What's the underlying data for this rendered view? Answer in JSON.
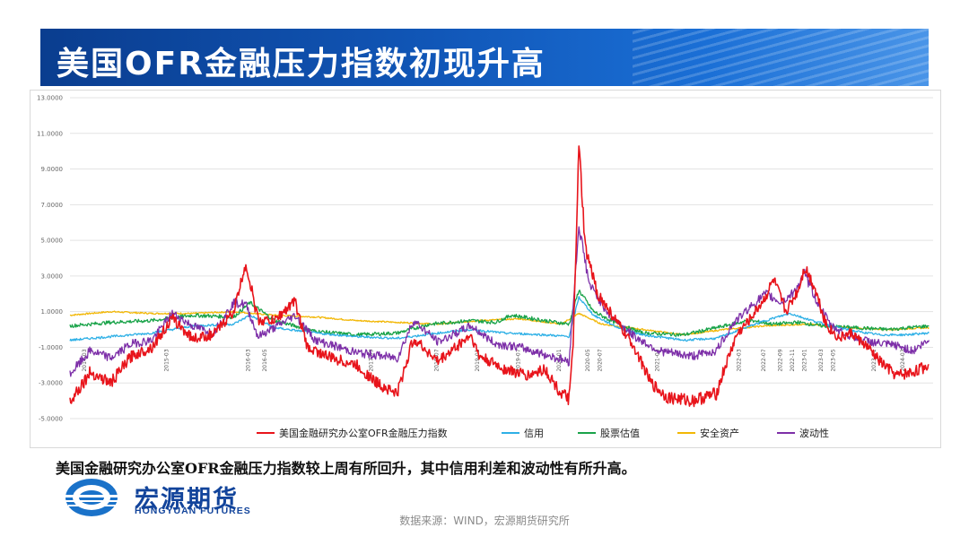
{
  "banner": {
    "title": "美国OFR金融压力指数初现升高"
  },
  "summary": "美国金融研究办公室OFR金融压力指数较上周有所回升，其中信用利差和波动性有所升高。",
  "logo": {
    "cn": "宏源期货",
    "en": "HONGYUAN FUTURES"
  },
  "source": "数据来源：WIND，宏源期货研究所",
  "colors": {
    "banner": "#1157b8",
    "brand": "#12449b"
  },
  "chart_data": {
    "type": "line",
    "ylim": [
      -5,
      13
    ],
    "ytick_labels": [
      "13.0000",
      "11.0000",
      "9.0000",
      "7.0000",
      "5.0000",
      "3.0000",
      "1.0000",
      "-1.0000",
      "-3.0000",
      "-5.0000"
    ],
    "ytick_values": [
      13,
      11,
      9,
      7,
      5,
      3,
      1,
      -1,
      -3,
      -5
    ],
    "x_range": [
      "2014-03",
      "2024-03"
    ],
    "x_tick_labels": [
      "2014-03",
      "2015-03",
      "2016-03",
      "2016-05",
      "2017-09",
      "2018-07",
      "2019-01",
      "2019-07",
      "2020-01",
      "2020-05",
      "2020-07",
      "2021-03",
      "2022-03",
      "2022-07",
      "2022-09",
      "2022-11",
      "2023-01",
      "2023-03",
      "2023-05",
      "2023-11",
      "2024-03"
    ],
    "x_tick_years": [
      2014.2,
      2015.2,
      2016.2,
      2016.4,
      2017.7,
      2018.5,
      2019.0,
      2019.5,
      2020.0,
      2020.35,
      2020.5,
      2021.2,
      2022.2,
      2022.5,
      2022.7,
      2022.85,
      2023.0,
      2023.2,
      2023.35,
      2023.85,
      2024.2
    ],
    "series": [
      {
        "name": "美国金融研究办公室OFR金融压力指数",
        "color": "#e8141b",
        "points": [
          [
            2014.0,
            -4.0
          ],
          [
            2014.25,
            -2.4
          ],
          [
            2014.5,
            -3.0
          ],
          [
            2014.75,
            -1.5
          ],
          [
            2015.0,
            -1.0
          ],
          [
            2015.25,
            0.6
          ],
          [
            2015.5,
            -0.5
          ],
          [
            2015.75,
            -0.3
          ],
          [
            2016.0,
            1.0
          ],
          [
            2016.15,
            3.7
          ],
          [
            2016.3,
            0.5
          ],
          [
            2016.5,
            0.5
          ],
          [
            2016.75,
            1.6
          ],
          [
            2016.9,
            -1.0
          ],
          [
            2017.2,
            -1.6
          ],
          [
            2017.5,
            -2.0
          ],
          [
            2017.75,
            -3.0
          ],
          [
            2018.0,
            -3.6
          ],
          [
            2018.2,
            -0.5
          ],
          [
            2018.5,
            -1.8
          ],
          [
            2018.9,
            -0.3
          ],
          [
            2019.0,
            -1.5
          ],
          [
            2019.3,
            -2.2
          ],
          [
            2019.6,
            -2.6
          ],
          [
            2019.8,
            -2.2
          ],
          [
            2020.0,
            -3.6
          ],
          [
            2020.1,
            -3.9
          ],
          [
            2020.15,
            -1.0
          ],
          [
            2020.22,
            10.3
          ],
          [
            2020.3,
            4.5
          ],
          [
            2020.45,
            2.0
          ],
          [
            2020.7,
            0.3
          ],
          [
            2020.9,
            -1.0
          ],
          [
            2021.1,
            -3.0
          ],
          [
            2021.3,
            -3.8
          ],
          [
            2021.6,
            -4.0
          ],
          [
            2021.9,
            -3.6
          ],
          [
            2022.0,
            -2.2
          ],
          [
            2022.15,
            -0.3
          ],
          [
            2022.3,
            0.5
          ],
          [
            2022.5,
            1.8
          ],
          [
            2022.6,
            2.8
          ],
          [
            2022.75,
            1.0
          ],
          [
            2022.9,
            2.2
          ],
          [
            2022.98,
            3.5
          ],
          [
            2023.1,
            2.4
          ],
          [
            2023.25,
            0.2
          ],
          [
            2023.4,
            -0.5
          ],
          [
            2023.55,
            -0.2
          ],
          [
            2023.75,
            -1.0
          ],
          [
            2023.9,
            -1.8
          ],
          [
            2024.1,
            -2.6
          ],
          [
            2024.3,
            -2.4
          ],
          [
            2024.5,
            -2.0
          ]
        ]
      },
      {
        "name": "信用",
        "color": "#2eb0e6",
        "points": [
          [
            2014.0,
            -0.6
          ],
          [
            2014.5,
            -0.4
          ],
          [
            2015.0,
            -0.2
          ],
          [
            2015.5,
            0.2
          ],
          [
            2016.0,
            0.3
          ],
          [
            2016.2,
            0.8
          ],
          [
            2016.5,
            0.1
          ],
          [
            2017.0,
            -0.2
          ],
          [
            2017.5,
            -0.4
          ],
          [
            2018.0,
            -0.5
          ],
          [
            2018.5,
            -0.2
          ],
          [
            2018.9,
            0.0
          ],
          [
            2019.3,
            -0.2
          ],
          [
            2019.8,
            -0.3
          ],
          [
            2020.1,
            -0.4
          ],
          [
            2020.22,
            1.8
          ],
          [
            2020.4,
            0.8
          ],
          [
            2020.7,
            0.1
          ],
          [
            2021.0,
            -0.3
          ],
          [
            2021.5,
            -0.6
          ],
          [
            2021.9,
            -0.5
          ],
          [
            2022.2,
            0.0
          ],
          [
            2022.5,
            0.5
          ],
          [
            2022.8,
            0.9
          ],
          [
            2023.0,
            0.6
          ],
          [
            2023.3,
            0.2
          ],
          [
            2023.6,
            -0.1
          ],
          [
            2023.9,
            -0.3
          ],
          [
            2024.2,
            -0.3
          ],
          [
            2024.5,
            -0.2
          ]
        ]
      },
      {
        "name": "股票估值",
        "color": "#19a349",
        "points": [
          [
            2014.0,
            0.2
          ],
          [
            2014.5,
            0.4
          ],
          [
            2015.0,
            0.5
          ],
          [
            2015.5,
            0.8
          ],
          [
            2016.0,
            0.7
          ],
          [
            2016.2,
            1.5
          ],
          [
            2016.5,
            0.5
          ],
          [
            2017.0,
            -0.1
          ],
          [
            2017.5,
            -0.3
          ],
          [
            2018.0,
            -0.2
          ],
          [
            2018.4,
            0.3
          ],
          [
            2018.9,
            0.5
          ],
          [
            2019.2,
            0.4
          ],
          [
            2019.4,
            0.8
          ],
          [
            2019.8,
            0.5
          ],
          [
            2020.1,
            0.3
          ],
          [
            2020.22,
            2.2
          ],
          [
            2020.4,
            1.0
          ],
          [
            2020.7,
            0.3
          ],
          [
            2021.0,
            -0.2
          ],
          [
            2021.5,
            -0.3
          ],
          [
            2021.9,
            0.1
          ],
          [
            2022.3,
            0.5
          ],
          [
            2022.6,
            0.3
          ],
          [
            2022.9,
            0.4
          ],
          [
            2023.2,
            0.2
          ],
          [
            2023.6,
            0.1
          ],
          [
            2024.0,
            0.0
          ],
          [
            2024.5,
            0.2
          ]
        ]
      },
      {
        "name": "安全资产",
        "color": "#f2b705",
        "points": [
          [
            2014.0,
            0.8
          ],
          [
            2014.5,
            1.0
          ],
          [
            2015.0,
            0.9
          ],
          [
            2015.5,
            0.9
          ],
          [
            2016.0,
            1.0
          ],
          [
            2016.5,
            0.8
          ],
          [
            2017.0,
            0.7
          ],
          [
            2017.5,
            0.5
          ],
          [
            2018.0,
            0.4
          ],
          [
            2018.5,
            0.3
          ],
          [
            2019.0,
            0.5
          ],
          [
            2019.5,
            0.6
          ],
          [
            2020.0,
            0.3
          ],
          [
            2020.22,
            0.9
          ],
          [
            2020.5,
            0.3
          ],
          [
            2021.0,
            0.0
          ],
          [
            2021.5,
            -0.3
          ],
          [
            2022.0,
            0.0
          ],
          [
            2022.5,
            0.2
          ],
          [
            2023.0,
            0.3
          ],
          [
            2023.5,
            0.1
          ],
          [
            2024.0,
            0.0
          ],
          [
            2024.5,
            0.1
          ]
        ]
      },
      {
        "name": "波动性",
        "color": "#7d2fa8",
        "points": [
          [
            2014.0,
            -2.5
          ],
          [
            2014.25,
            -1.2
          ],
          [
            2014.5,
            -1.6
          ],
          [
            2014.75,
            -0.8
          ],
          [
            2015.0,
            -0.6
          ],
          [
            2015.25,
            0.9
          ],
          [
            2015.5,
            0.2
          ],
          [
            2015.75,
            -0.2
          ],
          [
            2016.0,
            1.5
          ],
          [
            2016.15,
            1.4
          ],
          [
            2016.3,
            -0.4
          ],
          [
            2016.5,
            0.1
          ],
          [
            2016.75,
            0.8
          ],
          [
            2017.0,
            -0.6
          ],
          [
            2017.5,
            -1.3
          ],
          [
            2018.0,
            -1.6
          ],
          [
            2018.2,
            0.5
          ],
          [
            2018.5,
            -0.7
          ],
          [
            2018.9,
            0.2
          ],
          [
            2019.2,
            -0.8
          ],
          [
            2019.5,
            -1.0
          ],
          [
            2019.8,
            -1.4
          ],
          [
            2020.1,
            -1.8
          ],
          [
            2020.22,
            5.8
          ],
          [
            2020.35,
            2.5
          ],
          [
            2020.6,
            0.8
          ],
          [
            2020.9,
            -0.4
          ],
          [
            2021.2,
            -1.2
          ],
          [
            2021.6,
            -1.5
          ],
          [
            2021.9,
            -1.2
          ],
          [
            2022.1,
            0.3
          ],
          [
            2022.3,
            1.2
          ],
          [
            2022.5,
            2.0
          ],
          [
            2022.7,
            1.5
          ],
          [
            2022.85,
            2.1
          ],
          [
            2022.98,
            3.1
          ],
          [
            2023.15,
            1.4
          ],
          [
            2023.3,
            0.2
          ],
          [
            2023.5,
            -0.3
          ],
          [
            2023.7,
            -0.6
          ],
          [
            2023.9,
            -0.8
          ],
          [
            2024.1,
            -0.9
          ],
          [
            2024.3,
            -1.2
          ],
          [
            2024.5,
            -0.6
          ]
        ]
      }
    ]
  }
}
